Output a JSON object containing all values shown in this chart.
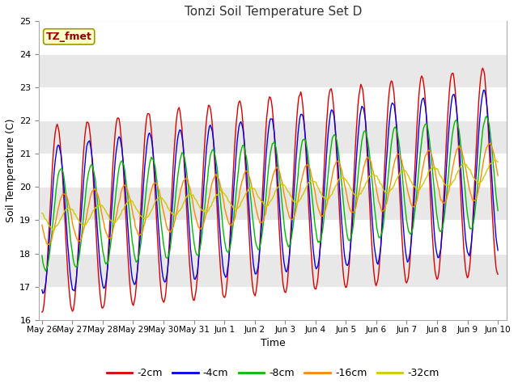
{
  "title": "Tonzi Soil Temperature Set D",
  "xlabel": "Time",
  "ylabel": "Soil Temperature (C)",
  "ylim": [
    16.0,
    25.0
  ],
  "yticks": [
    16.0,
    17.0,
    18.0,
    19.0,
    20.0,
    21.0,
    22.0,
    23.0,
    24.0,
    25.0
  ],
  "fig_bg_color": "#ffffff",
  "plot_bg_color": "#f0f0f0",
  "series_colors": [
    "#dd0000",
    "#0000ee",
    "#00bb00",
    "#ff8800",
    "#cccc00"
  ],
  "series_labels": [
    "-2cm",
    "-4cm",
    "-8cm",
    "-16cm",
    "-32cm"
  ],
  "label_box_color": "#ffffcc",
  "label_box_edge": "#999900",
  "label_text": "TZ_fmet",
  "label_text_color": "#990000",
  "n_points": 480,
  "total_days": 15.0,
  "base_temp": 19.0,
  "trend": 0.1,
  "amplitudes": [
    2.8,
    2.2,
    1.5,
    0.75,
    0.28
  ],
  "phase_shifts": [
    0.0,
    0.04,
    0.12,
    0.22,
    0.38
  ],
  "xtick_labels": [
    "May 26",
    "May 27",
    "May 28",
    "May 29",
    "May 30",
    "May 31",
    "Jun 1",
    "Jun 2",
    "Jun 3",
    "Jun 4",
    "Jun 5",
    "Jun 6",
    "Jun 7",
    "Jun 8",
    "Jun 9",
    "Jun 10"
  ],
  "xtick_days": [
    0,
    1,
    2,
    3,
    4,
    5,
    6,
    7,
    8,
    9,
    10,
    11,
    12,
    13,
    14,
    15
  ]
}
